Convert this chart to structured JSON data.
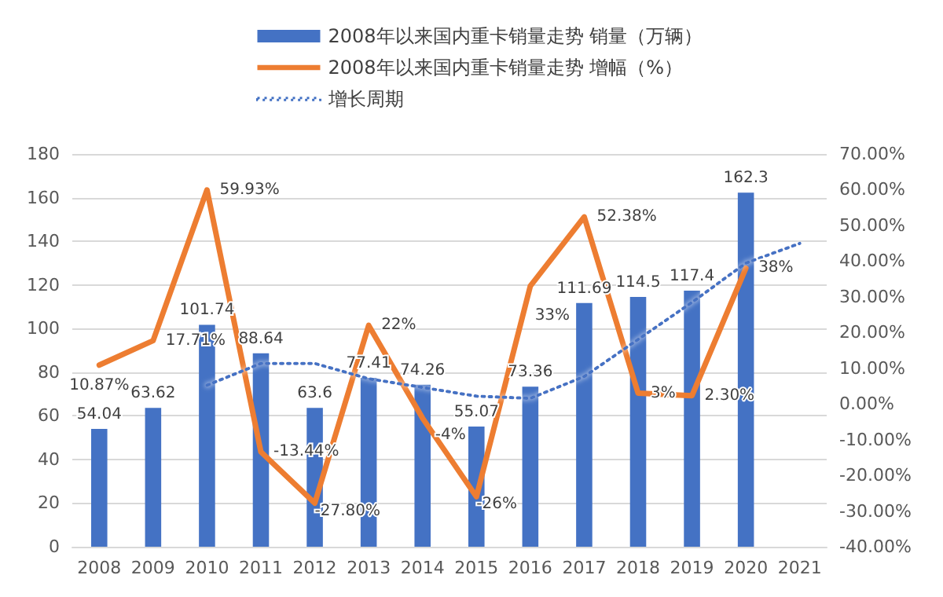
{
  "chart_data": {
    "type": "bar",
    "categories": [
      "2008",
      "2009",
      "2010",
      "2011",
      "2012",
      "2013",
      "2014",
      "2015",
      "2016",
      "2017",
      "2018",
      "2019",
      "2020",
      "2021"
    ],
    "series": [
      {
        "name": "2008年以来国内重卡销量走势 销量（万辆）",
        "type": "bar",
        "color": "#4472c4",
        "values": [
          54.04,
          63.62,
          101.74,
          88.64,
          63.6,
          77.41,
          74.26,
          55.07,
          73.36,
          111.69,
          114.5,
          117.4,
          162.3,
          null
        ],
        "value_labels": [
          "54.04",
          "63.62",
          "101.74",
          "88.64",
          "63.6",
          "77.41",
          "74.26",
          "55.07",
          "73.36",
          "111.69",
          "114.5",
          "117.4",
          "162.3",
          null
        ]
      },
      {
        "name": "2008年以来国内重卡销量走势 增幅（%）",
        "type": "line",
        "axis": "y2",
        "color": "#ed7d31",
        "line_style": "solid",
        "marker": "none",
        "values": [
          10.87,
          17.71,
          59.93,
          -13.44,
          -27.8,
          22,
          -4,
          -26,
          33,
          52.38,
          3,
          2.3,
          38,
          null
        ],
        "value_labels": [
          "10.87%",
          "17.71%",
          "59.93%",
          "-13.44%",
          "-27.80%",
          "22%",
          "-4%",
          "-26%",
          "33%",
          "52.38%",
          "3%",
          "2.30%",
          "38%",
          null
        ]
      },
      {
        "name": "增长周期",
        "type": "line",
        "color": "#4472c4",
        "line_style": "dotted",
        "marker": "none",
        "values": [
          null,
          null,
          74,
          84,
          84,
          77,
          73,
          69,
          68,
          78,
          95,
          112,
          130,
          139
        ]
      }
    ],
    "ylim": [
      0,
      180
    ],
    "yticks": [
      0,
      20,
      40,
      60,
      80,
      100,
      120,
      140,
      160,
      180
    ],
    "y2lim": [
      -40,
      70
    ],
    "y2ticks": [
      {
        "value": -40,
        "label": "-40.00%"
      },
      {
        "value": -30,
        "label": "-30.00%"
      },
      {
        "value": -20,
        "label": "-20.00%"
      },
      {
        "value": -10,
        "label": "-10.00%"
      },
      {
        "value": 0,
        "label": "0.00%"
      },
      {
        "value": 10,
        "label": "10.00%"
      },
      {
        "value": 20,
        "label": "20.00%"
      },
      {
        "value": 30,
        "label": "30.00%"
      },
      {
        "value": 40,
        "label": "40.00%"
      },
      {
        "value": 50,
        "label": "50.00%"
      },
      {
        "value": 60,
        "label": "60.00%"
      },
      {
        "value": 70,
        "label": "70.00%"
      }
    ],
    "grid": "y",
    "legend": "top"
  }
}
